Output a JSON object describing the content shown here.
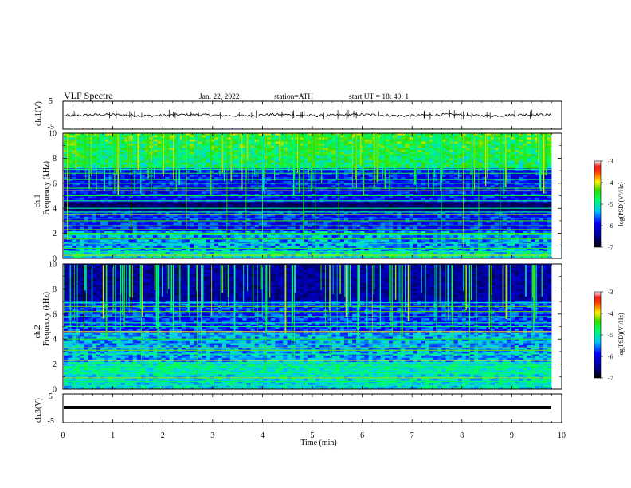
{
  "header": {
    "title": "VLF  Spectra",
    "date": "Jan. 22, 2022",
    "station": "station=ATH",
    "start": "start  UT  =    18: 40: 1"
  },
  "chart_data": [
    {
      "type": "line",
      "ylabel": "ch.1(V)",
      "ylim": [
        -5,
        5
      ],
      "yticks": [
        "5",
        "-5"
      ],
      "xlim": [
        0,
        10
      ],
      "description_values": {
        "baseline": 0,
        "spike_range": [
          -1.5,
          2
        ]
      }
    },
    {
      "type": "heatmap",
      "ylabel_top": "ch.1",
      "ylabel": "Frequency  (kHz)",
      "ylim": [
        0,
        10
      ],
      "yticks": [
        "0",
        "2",
        "4",
        "6",
        "8",
        "10"
      ],
      "xlim": [
        0,
        10
      ],
      "colorbar": {
        "label": "log(PSD)(V²/Hz)",
        "ticks": [
          "-3",
          "-4",
          "-5",
          "-6",
          "-7"
        ],
        "range": [
          -7,
          -3
        ]
      },
      "lines_khz": [
        0.25,
        0.55,
        0.8,
        1.2,
        1.55,
        1.9,
        2.0,
        2.3,
        2.6,
        3.0,
        3.2,
        3.5,
        3.7,
        4.0,
        4.6,
        5.0,
        5.4,
        5.6,
        6.0,
        6.3,
        6.8,
        7.1
      ]
    },
    {
      "type": "heatmap",
      "ylabel_top": "ch.2",
      "ylabel": "Frequency  (kHz)",
      "ylim": [
        0,
        10
      ],
      "yticks": [
        "0",
        "2",
        "4",
        "6",
        "8",
        "10"
      ],
      "xlim": [
        0,
        10
      ],
      "colorbar": {
        "label": "log(PSD)(V²/Hz)",
        "ticks": [
          "-3",
          "-4",
          "-5",
          "-6",
          "-7"
        ],
        "range": [
          -7,
          -3
        ]
      },
      "lines_khz": [
        0.3,
        0.6,
        0.9,
        1.3,
        1.8,
        2.0,
        2.3,
        2.8,
        3.1,
        3.3,
        3.6,
        4.0,
        4.6,
        5.0,
        5.3,
        5.8,
        6.2,
        6.6,
        6.9
      ]
    },
    {
      "type": "line",
      "ylabel": "ch.3(V)",
      "ylim": [
        -5,
        5
      ],
      "yticks": [
        "5",
        "-5"
      ],
      "xlim": [
        0,
        10
      ],
      "xticks": [
        "0",
        "1",
        "2",
        "3",
        "4",
        "5",
        "6",
        "7",
        "8",
        "9",
        "10"
      ],
      "xlabel": "Time  (min)",
      "description_values": {
        "baseline": 0
      }
    }
  ],
  "colors": {
    "axis": "#000000",
    "bg": "#ffffff"
  }
}
